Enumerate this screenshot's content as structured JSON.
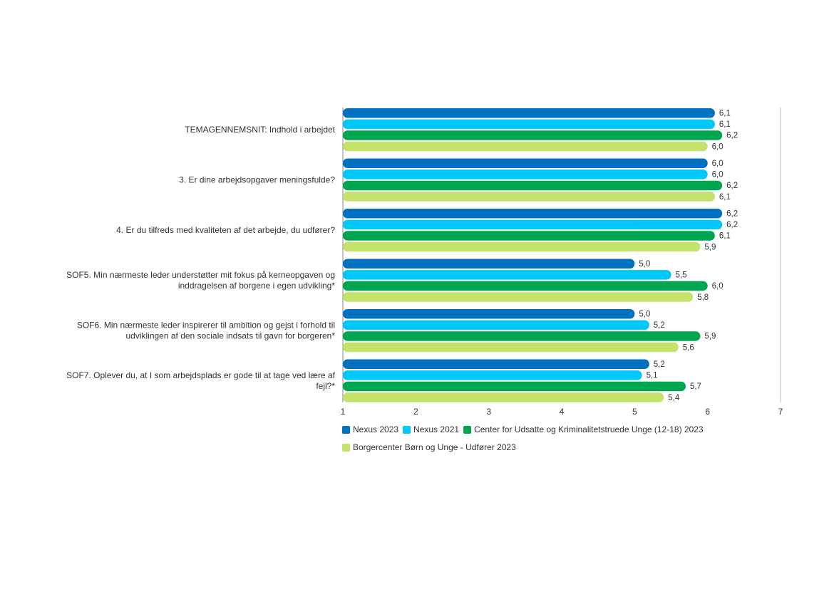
{
  "chart_data": {
    "type": "bar",
    "orientation": "horizontal",
    "categories": [
      "TEMAGENNEMSNIT: Indhold i arbejdet",
      "3. Er dine arbejdsopgaver meningsfulde?",
      "4. Er du tilfreds med kvaliteten af det arbejde, du udfører?",
      "SOF5. Min nærmeste leder understøtter mit fokus på kerneopgaven og inddragelsen af borgene i egen udvikling*",
      "SOF6. Min nærmeste leder inspirerer til ambition og gejst i forhold til udviklingen af den sociale indsats til gavn for borgeren*",
      "SOF7. Oplever du, at I som arbejdsplads er gode til at tage ved lære af fejl?*"
    ],
    "category_lines": [
      [
        "TEMAGENNEMSNIT: Indhold i arbejdet"
      ],
      [
        "3. Er dine arbejdsopgaver meningsfulde?"
      ],
      [
        "4. Er du tilfreds med kvaliteten af det arbejde, du udfører?"
      ],
      [
        "SOF5. Min nærmeste leder understøtter mit fokus på kerneopgaven og",
        "inddragelsen af borgene i egen udvikling*"
      ],
      [
        "SOF6. Min nærmeste leder inspirerer til ambition og gejst i forhold til",
        "udviklingen af den sociale indsats til gavn for borgeren*"
      ],
      [
        "SOF7. Oplever du, at I som arbejdsplads er gode til at tage ved lære af",
        "fejl?*"
      ]
    ],
    "series": [
      {
        "name": "Nexus 2023",
        "color": "#0070C0",
        "values": [
          6.1,
          6.0,
          6.2,
          5.0,
          5.0,
          5.2
        ],
        "labels": [
          "6,1",
          "6,0",
          "6,2",
          "5,0",
          "5,0",
          "5,2"
        ]
      },
      {
        "name": "Nexus 2021",
        "color": "#00C8F8",
        "values": [
          6.1,
          6.0,
          6.2,
          5.5,
          5.2,
          5.1
        ],
        "labels": [
          "6,1",
          "6,0",
          "6,2",
          "5,5",
          "5,2",
          "5,1"
        ]
      },
      {
        "name": "Center for Udsatte og Kriminalitetstruede Unge (12-18) 2023",
        "color": "#00A650",
        "values": [
          6.2,
          6.2,
          6.1,
          6.0,
          5.9,
          5.7
        ],
        "labels": [
          "6,2",
          "6,2",
          "6,1",
          "6,0",
          "5,9",
          "5,7"
        ]
      },
      {
        "name": "Borgercenter Børn og Unge - Udfører 2023",
        "color": "#C5E36A",
        "values": [
          6.0,
          6.1,
          5.9,
          5.8,
          5.6,
          5.4
        ],
        "labels": [
          "6,0",
          "6,1",
          "5,9",
          "5,8",
          "5,6",
          "5,4"
        ]
      }
    ],
    "xlim": [
      1,
      7
    ],
    "xticks": [
      "1",
      "2",
      "3",
      "4",
      "5",
      "6",
      "7"
    ],
    "legend_placement": "bottom"
  }
}
